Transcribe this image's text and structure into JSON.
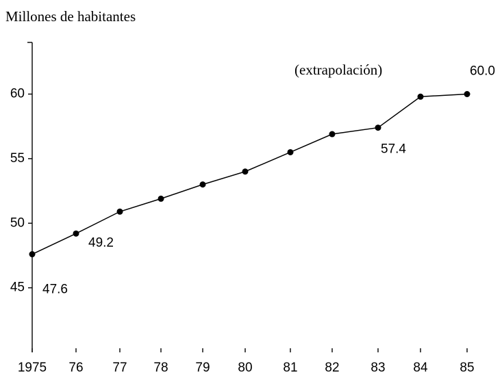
{
  "chart_data": {
    "type": "line",
    "y_label": "Millones de habitantes",
    "annotation": "(extrapolación)",
    "categories": [
      "1975",
      "76",
      "77",
      "78",
      "79",
      "80",
      "81",
      "82",
      "83",
      "84",
      "85"
    ],
    "series": [
      {
        "color": "#000000",
        "values": [
          47.6,
          49.2,
          50.9,
          51.9,
          53.0,
          54.0,
          55.5,
          56.9,
          57.4,
          59.8,
          60.0
        ],
        "value_labels": [
          "47.6",
          "49.2",
          null,
          null,
          null,
          null,
          null,
          null,
          "57.4",
          null,
          "60.0"
        ]
      }
    ],
    "ylim": [
      40,
      64
    ],
    "yticks": [
      45,
      50,
      55,
      60
    ],
    "grid": false
  }
}
